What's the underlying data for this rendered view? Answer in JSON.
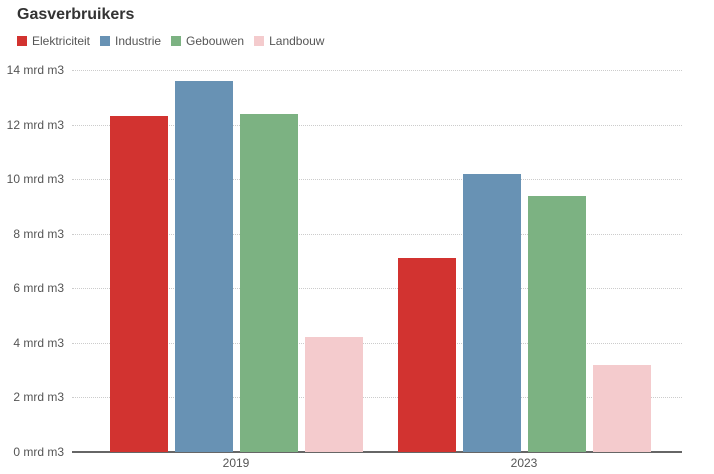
{
  "chart_data": {
    "type": "bar",
    "title": "Gasverbruikers",
    "unit": "mrd m3",
    "categories": [
      "2019",
      "2023"
    ],
    "series": [
      {
        "name": "Elektriciteit",
        "color": "#d23330",
        "values": [
          12.3,
          7.1
        ]
      },
      {
        "name": "Industrie",
        "color": "#6892b4",
        "values": [
          13.6,
          10.2
        ]
      },
      {
        "name": "Gebouwen",
        "color": "#7cb282",
        "values": [
          12.4,
          9.4
        ]
      },
      {
        "name": "Landbouw",
        "color": "#f4cbcd",
        "values": [
          4.2,
          3.2
        ]
      }
    ],
    "y_axis": {
      "min": 0,
      "max": 14,
      "tick_step": 2,
      "tick_labels": [
        "0 mrd m3",
        "2 mrd m3",
        "4 mrd m3",
        "6 mrd m3",
        "8 mrd m3",
        "10 mrd m3",
        "12 mrd m3",
        "14 mrd m3"
      ]
    },
    "grid": {
      "horizontal": true,
      "style": "dotted",
      "color": "#cccccc"
    },
    "axis_line_color": "#666666",
    "text_color": "#555555",
    "title_color": "#333333",
    "legend_position": "top-left",
    "ylim": [
      0,
      14
    ]
  }
}
